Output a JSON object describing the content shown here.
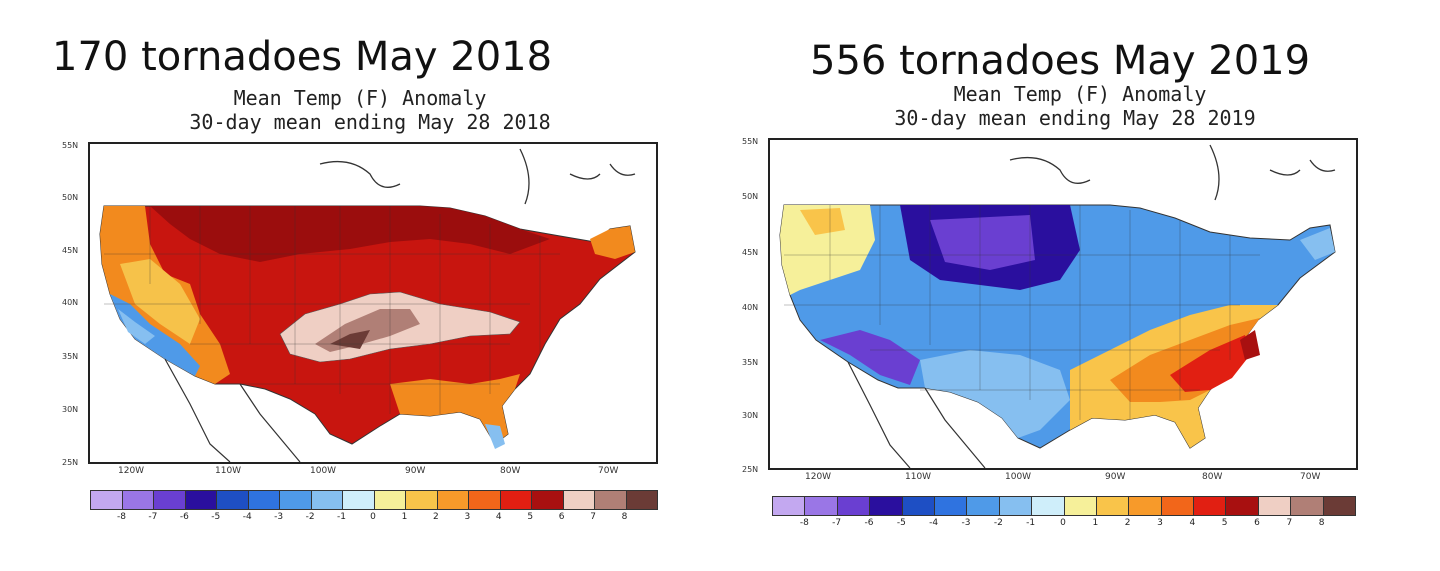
{
  "panels": [
    {
      "headline": "170 tornadoes May 2018",
      "subtitle_line1": "Mean Temp (F) Anomaly",
      "subtitle_line2": "30-day mean ending May 28 2018"
    },
    {
      "headline": "556 tornadoes May 2019",
      "subtitle_line1": "Mean Temp (F) Anomaly",
      "subtitle_line2": "30-day mean ending May 28 2019"
    }
  ],
  "lat_labels": [
    "55N",
    "50N",
    "45N",
    "40N",
    "35N",
    "30N",
    "25N"
  ],
  "lon_labels": [
    "120W",
    "110W",
    "100W",
    "90W",
    "80W",
    "70W"
  ],
  "colorbar": {
    "colors": [
      "#c3a8f0",
      "#9a76e6",
      "#6a3fd1",
      "#2a0f9e",
      "#1e4fc4",
      "#2f73e0",
      "#4f9ae8",
      "#86bff0",
      "#cfeefa",
      "#f6f09a",
      "#f9c44a",
      "#f79a2a",
      "#f2661a",
      "#e11f12",
      "#a81010",
      "#efcfc4",
      "#b07f76",
      "#6b3b36"
    ],
    "tick_labels": [
      "-8",
      "-7",
      "-6",
      "-5",
      "-4",
      "-3",
      "-2",
      "-1",
      "0",
      "1",
      "2",
      "3",
      "4",
      "5",
      "6",
      "7",
      "8"
    ]
  }
}
